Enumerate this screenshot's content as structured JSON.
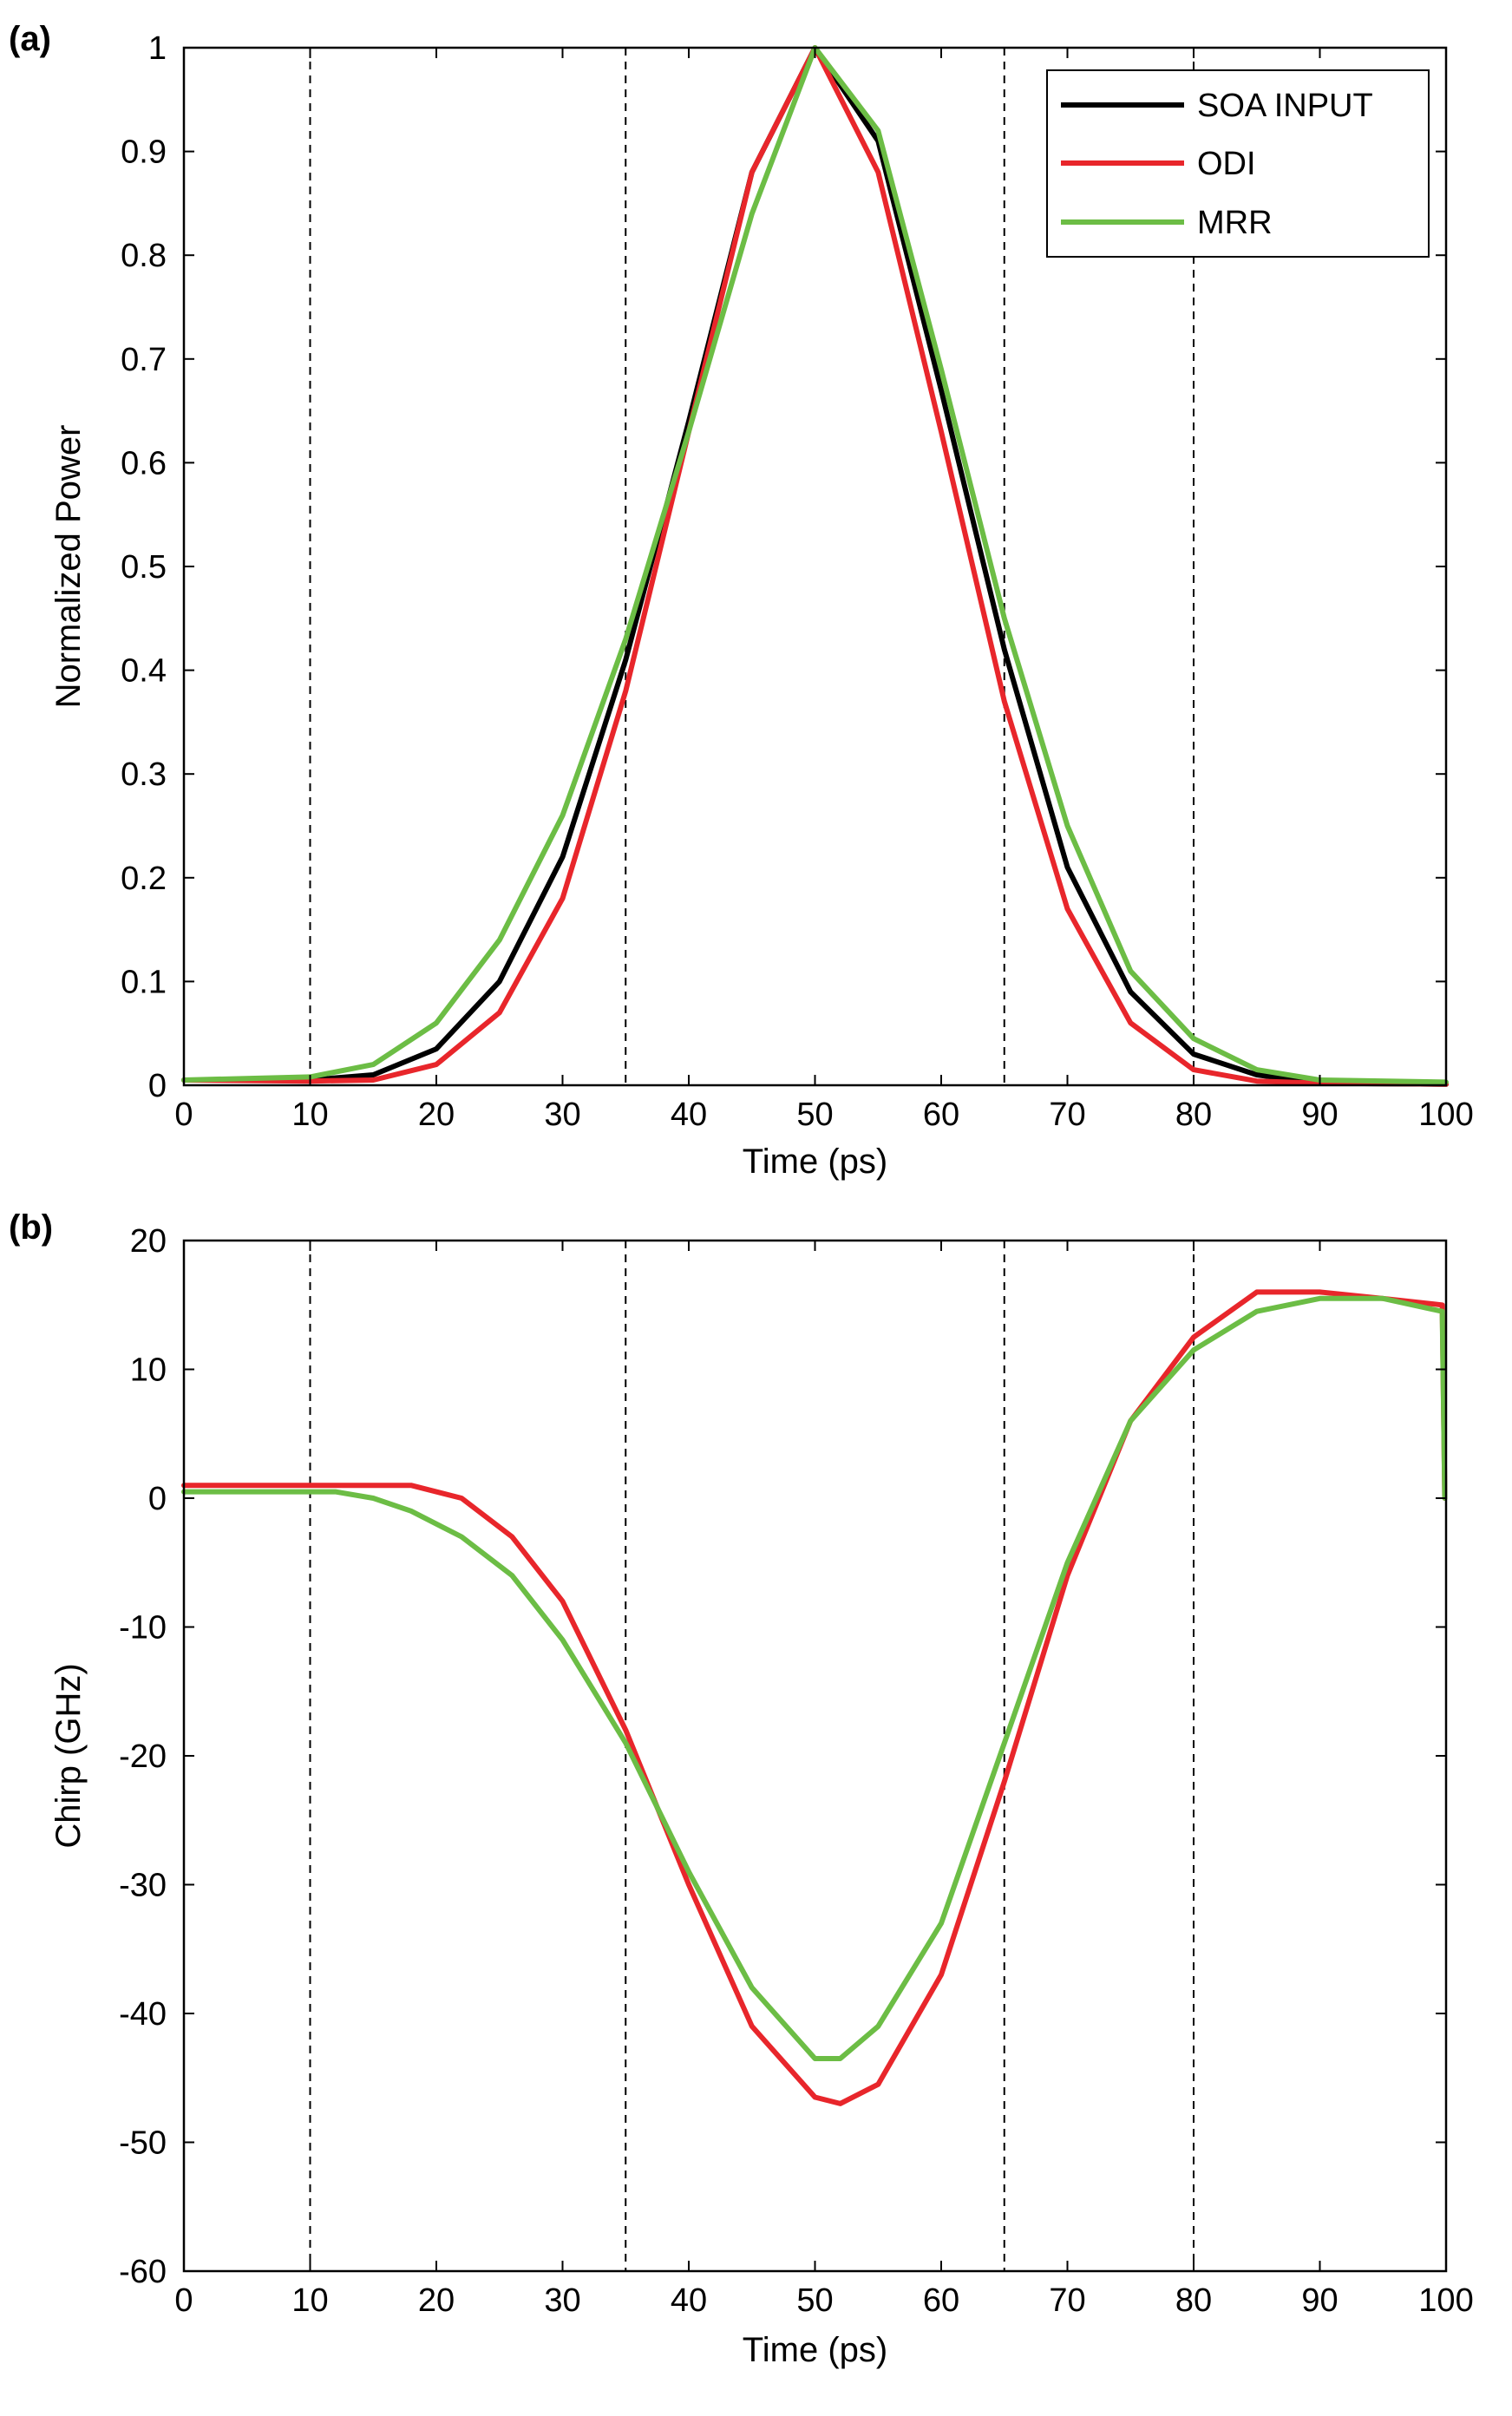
{
  "chart_data": [
    {
      "panel_label": "(a)",
      "type": "line",
      "xlabel": "Time (ps)",
      "ylabel": "Normalized Power",
      "xlim": [
        0,
        100
      ],
      "ylim": [
        0,
        1
      ],
      "xticks": [
        "0",
        "10",
        "20",
        "30",
        "40",
        "50",
        "60",
        "70",
        "80",
        "90",
        "100"
      ],
      "yticks": [
        "0",
        "0.1",
        "0.2",
        "0.3",
        "0.4",
        "0.5",
        "0.6",
        "0.7",
        "0.8",
        "0.9",
        "1"
      ],
      "grid": false,
      "legend_position": "top-right",
      "vertical_reference_lines_x": [
        10,
        35,
        65,
        80
      ],
      "series": [
        {
          "name": "SOA INPUT",
          "color": "#000000",
          "x": [
            0,
            10,
            15,
            20,
            25,
            30,
            35,
            40,
            45,
            50,
            55,
            60,
            65,
            70,
            75,
            80,
            85,
            90,
            100
          ],
          "y": [
            0.005,
            0.005,
            0.01,
            0.035,
            0.1,
            0.22,
            0.41,
            0.64,
            0.88,
            1.0,
            0.91,
            0.67,
            0.42,
            0.21,
            0.09,
            0.03,
            0.01,
            0.002,
            0.001
          ]
        },
        {
          "name": "ODI",
          "color": "#e8262b",
          "x": [
            0,
            10,
            15,
            20,
            25,
            30,
            35,
            40,
            45,
            50,
            55,
            60,
            65,
            70,
            75,
            80,
            85,
            90,
            100
          ],
          "y": [
            0.005,
            0.004,
            0.005,
            0.02,
            0.07,
            0.18,
            0.38,
            0.63,
            0.88,
            1.0,
            0.88,
            0.63,
            0.37,
            0.17,
            0.06,
            0.015,
            0.004,
            0.002,
            0.001
          ]
        },
        {
          "name": "MRR",
          "color": "#6cbd45",
          "x": [
            0,
            10,
            15,
            20,
            25,
            30,
            35,
            40,
            45,
            50,
            55,
            60,
            65,
            70,
            75,
            80,
            85,
            90,
            100
          ],
          "y": [
            0.005,
            0.008,
            0.02,
            0.06,
            0.14,
            0.26,
            0.43,
            0.63,
            0.84,
            1.0,
            0.92,
            0.69,
            0.45,
            0.25,
            0.11,
            0.045,
            0.015,
            0.005,
            0.003
          ]
        }
      ]
    },
    {
      "panel_label": "(b)",
      "type": "line",
      "xlabel": "Time (ps)",
      "ylabel": "Chirp (GHz)",
      "xlim": [
        0,
        100
      ],
      "ylim": [
        -60,
        20
      ],
      "xticks": [
        "0",
        "10",
        "20",
        "30",
        "40",
        "50",
        "60",
        "70",
        "80",
        "90",
        "100"
      ],
      "yticks": [
        "-60",
        "-50",
        "-40",
        "-30",
        "-20",
        "-10",
        "0",
        "10",
        "20"
      ],
      "grid": false,
      "vertical_reference_lines_x": [
        10,
        35,
        65,
        80
      ],
      "series": [
        {
          "name": "ODI",
          "color": "#e8262b",
          "x": [
            0,
            13,
            18,
            22,
            26,
            30,
            35,
            40,
            45,
            50,
            52,
            55,
            60,
            65,
            70,
            75,
            80,
            85,
            90,
            95,
            99.7,
            99.9
          ],
          "y": [
            1,
            1,
            1,
            0,
            -3,
            -8,
            -18,
            -30,
            -41,
            -46.5,
            -47,
            -45.5,
            -37,
            -22,
            -6,
            6,
            12.5,
            16,
            16,
            15.5,
            15,
            0
          ]
        },
        {
          "name": "MRR",
          "color": "#6cbd45",
          "x": [
            0,
            12,
            15,
            18,
            22,
            26,
            30,
            35,
            40,
            45,
            50,
            52,
            55,
            60,
            65,
            70,
            75,
            80,
            85,
            90,
            95,
            99.7,
            99.9
          ],
          "y": [
            0.5,
            0.5,
            0,
            -1,
            -3,
            -6,
            -11,
            -19,
            -29,
            -38,
            -43.5,
            -43.5,
            -41,
            -33,
            -19,
            -5,
            6,
            11.5,
            14.5,
            15.5,
            15.5,
            14.5,
            0
          ]
        }
      ]
    }
  ]
}
